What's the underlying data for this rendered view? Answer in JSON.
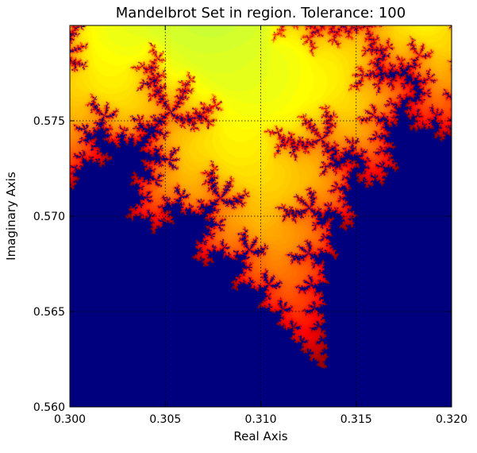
{
  "chart_data": {
    "type": "heatmap",
    "title": "Mandelbrot Set in region. Tolerance: 100",
    "xlabel": "Real Axis",
    "ylabel": "Imaginary Axis",
    "xlim": [
      0.3,
      0.32
    ],
    "ylim": [
      0.56,
      0.58
    ],
    "x_ticks": [
      "0.300",
      "0.305",
      "0.310",
      "0.315",
      "0.320"
    ],
    "y_ticks": [
      "0.560",
      "0.565",
      "0.570",
      "0.575"
    ],
    "x_tick_values": [
      0.3,
      0.305,
      0.31,
      0.315,
      0.32
    ],
    "y_tick_values": [
      0.56,
      0.565,
      0.57,
      0.575
    ],
    "tolerance": 100,
    "colormap": "jet",
    "grid": true,
    "inside_color": "#00007f"
  }
}
